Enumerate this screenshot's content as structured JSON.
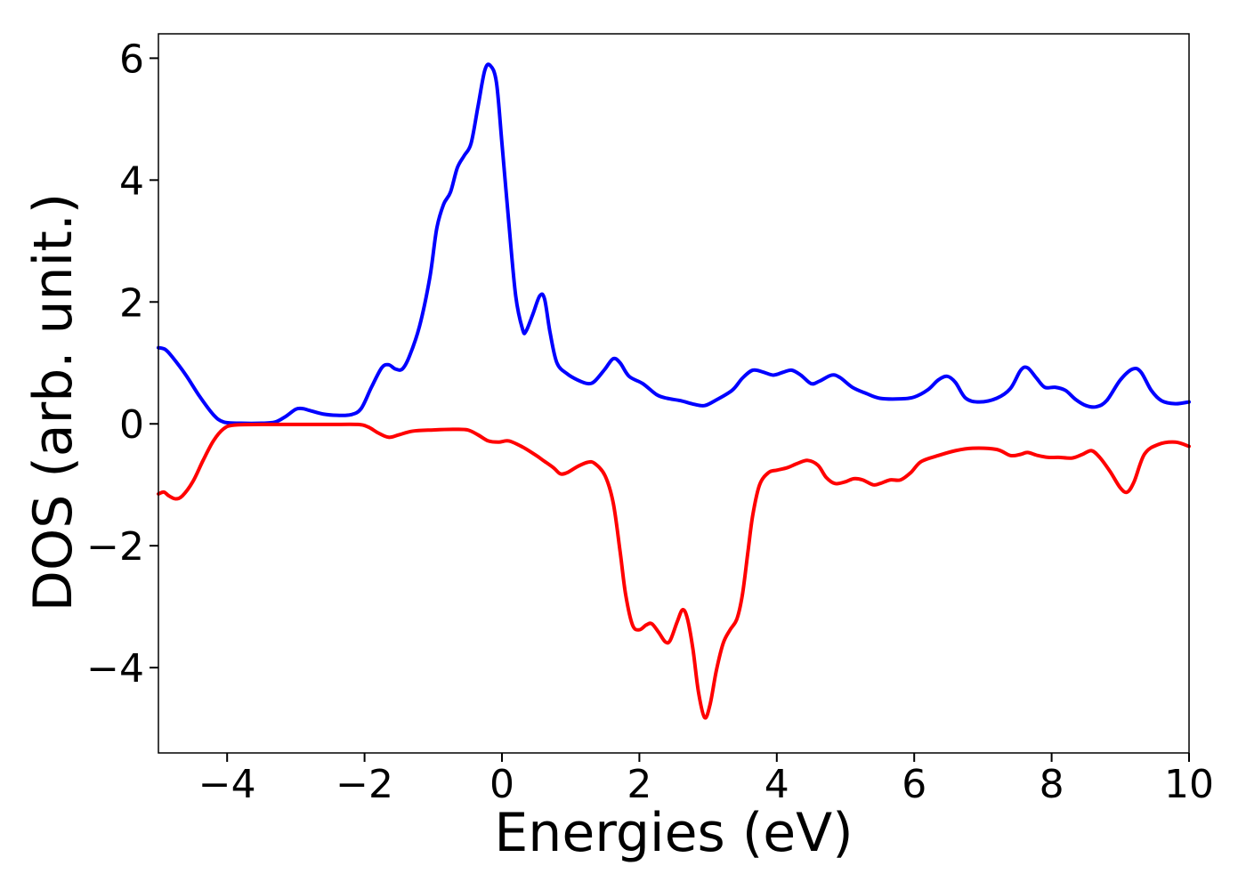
{
  "chart_data": {
    "type": "line",
    "xlabel": "Energies (eV)",
    "ylabel": "DOS (arb. unit.)",
    "xlim": [
      -5,
      10
    ],
    "ylim": [
      -5.4,
      6.4
    ],
    "xticks": [
      -4,
      -2,
      0,
      2,
      4,
      6,
      8,
      10
    ],
    "yticks": [
      -4,
      -2,
      0,
      2,
      4,
      6
    ],
    "xtick_labels": [
      "−4",
      "−2",
      "0",
      "2",
      "4",
      "6",
      "8",
      "10"
    ],
    "ytick_labels": [
      "−4",
      "−2",
      "0",
      "2",
      "4",
      "6"
    ],
    "grid": false,
    "series": [
      {
        "color": "#0000ff",
        "points": [
          [
            -5.0,
            1.25
          ],
          [
            -4.9,
            1.22
          ],
          [
            -4.8,
            1.1
          ],
          [
            -4.6,
            0.8
          ],
          [
            -4.4,
            0.45
          ],
          [
            -4.2,
            0.15
          ],
          [
            -4.05,
            0.03
          ],
          [
            -3.8,
            0.01
          ],
          [
            -3.5,
            0.01
          ],
          [
            -3.3,
            0.03
          ],
          [
            -3.15,
            0.12
          ],
          [
            -3.0,
            0.24
          ],
          [
            -2.9,
            0.25
          ],
          [
            -2.8,
            0.22
          ],
          [
            -2.6,
            0.16
          ],
          [
            -2.4,
            0.14
          ],
          [
            -2.2,
            0.15
          ],
          [
            -2.05,
            0.25
          ],
          [
            -1.9,
            0.6
          ],
          [
            -1.75,
            0.92
          ],
          [
            -1.65,
            0.97
          ],
          [
            -1.55,
            0.9
          ],
          [
            -1.45,
            0.9
          ],
          [
            -1.35,
            1.1
          ],
          [
            -1.2,
            1.6
          ],
          [
            -1.05,
            2.4
          ],
          [
            -0.95,
            3.2
          ],
          [
            -0.85,
            3.6
          ],
          [
            -0.75,
            3.8
          ],
          [
            -0.65,
            4.2
          ],
          [
            -0.55,
            4.4
          ],
          [
            -0.45,
            4.6
          ],
          [
            -0.35,
            5.2
          ],
          [
            -0.25,
            5.8
          ],
          [
            -0.17,
            5.88
          ],
          [
            -0.08,
            5.6
          ],
          [
            0.0,
            4.6
          ],
          [
            0.1,
            3.3
          ],
          [
            0.2,
            2.1
          ],
          [
            0.3,
            1.55
          ],
          [
            0.35,
            1.52
          ],
          [
            0.45,
            1.8
          ],
          [
            0.55,
            2.1
          ],
          [
            0.62,
            2.05
          ],
          [
            0.7,
            1.5
          ],
          [
            0.8,
            1.0
          ],
          [
            0.95,
            0.82
          ],
          [
            1.1,
            0.72
          ],
          [
            1.25,
            0.66
          ],
          [
            1.35,
            0.7
          ],
          [
            1.5,
            0.9
          ],
          [
            1.62,
            1.07
          ],
          [
            1.72,
            1.0
          ],
          [
            1.85,
            0.78
          ],
          [
            2.05,
            0.66
          ],
          [
            2.25,
            0.48
          ],
          [
            2.4,
            0.42
          ],
          [
            2.6,
            0.38
          ],
          [
            2.8,
            0.32
          ],
          [
            2.95,
            0.3
          ],
          [
            3.1,
            0.38
          ],
          [
            3.35,
            0.55
          ],
          [
            3.5,
            0.75
          ],
          [
            3.65,
            0.88
          ],
          [
            3.8,
            0.85
          ],
          [
            3.95,
            0.8
          ],
          [
            4.1,
            0.85
          ],
          [
            4.22,
            0.88
          ],
          [
            4.35,
            0.8
          ],
          [
            4.5,
            0.66
          ],
          [
            4.62,
            0.7
          ],
          [
            4.8,
            0.8
          ],
          [
            4.92,
            0.76
          ],
          [
            5.1,
            0.6
          ],
          [
            5.3,
            0.5
          ],
          [
            5.5,
            0.42
          ],
          [
            5.8,
            0.41
          ],
          [
            6.0,
            0.44
          ],
          [
            6.2,
            0.56
          ],
          [
            6.35,
            0.72
          ],
          [
            6.48,
            0.78
          ],
          [
            6.6,
            0.68
          ],
          [
            6.75,
            0.42
          ],
          [
            6.95,
            0.36
          ],
          [
            7.2,
            0.42
          ],
          [
            7.4,
            0.58
          ],
          [
            7.55,
            0.88
          ],
          [
            7.65,
            0.92
          ],
          [
            7.78,
            0.75
          ],
          [
            7.9,
            0.6
          ],
          [
            8.05,
            0.6
          ],
          [
            8.2,
            0.55
          ],
          [
            8.35,
            0.4
          ],
          [
            8.5,
            0.3
          ],
          [
            8.65,
            0.28
          ],
          [
            8.8,
            0.38
          ],
          [
            9.0,
            0.72
          ],
          [
            9.18,
            0.9
          ],
          [
            9.3,
            0.85
          ],
          [
            9.45,
            0.55
          ],
          [
            9.6,
            0.38
          ],
          [
            9.8,
            0.33
          ],
          [
            10.0,
            0.36
          ]
        ]
      },
      {
        "color": "#ff0000",
        "points": [
          [
            -5.0,
            -1.15
          ],
          [
            -4.92,
            -1.12
          ],
          [
            -4.85,
            -1.18
          ],
          [
            -4.75,
            -1.23
          ],
          [
            -4.65,
            -1.18
          ],
          [
            -4.5,
            -0.95
          ],
          [
            -4.35,
            -0.6
          ],
          [
            -4.2,
            -0.28
          ],
          [
            -4.05,
            -0.08
          ],
          [
            -3.9,
            -0.02
          ],
          [
            -3.5,
            -0.01
          ],
          [
            -3.0,
            -0.01
          ],
          [
            -2.5,
            -0.01
          ],
          [
            -2.1,
            -0.01
          ],
          [
            -1.95,
            -0.05
          ],
          [
            -1.8,
            -0.15
          ],
          [
            -1.65,
            -0.22
          ],
          [
            -1.5,
            -0.18
          ],
          [
            -1.3,
            -0.12
          ],
          [
            -1.0,
            -0.1
          ],
          [
            -0.7,
            -0.09
          ],
          [
            -0.5,
            -0.1
          ],
          [
            -0.35,
            -0.18
          ],
          [
            -0.2,
            -0.28
          ],
          [
            -0.05,
            -0.3
          ],
          [
            0.1,
            -0.28
          ],
          [
            0.3,
            -0.38
          ],
          [
            0.5,
            -0.52
          ],
          [
            0.6,
            -0.6
          ],
          [
            0.75,
            -0.72
          ],
          [
            0.85,
            -0.82
          ],
          [
            0.95,
            -0.8
          ],
          [
            1.1,
            -0.7
          ],
          [
            1.25,
            -0.63
          ],
          [
            1.35,
            -0.65
          ],
          [
            1.5,
            -0.85
          ],
          [
            1.62,
            -1.3
          ],
          [
            1.72,
            -2.1
          ],
          [
            1.8,
            -2.8
          ],
          [
            1.9,
            -3.3
          ],
          [
            2.0,
            -3.38
          ],
          [
            2.1,
            -3.3
          ],
          [
            2.18,
            -3.28
          ],
          [
            2.28,
            -3.42
          ],
          [
            2.38,
            -3.58
          ],
          [
            2.45,
            -3.55
          ],
          [
            2.55,
            -3.25
          ],
          [
            2.63,
            -3.05
          ],
          [
            2.7,
            -3.2
          ],
          [
            2.78,
            -3.7
          ],
          [
            2.86,
            -4.4
          ],
          [
            2.95,
            -4.82
          ],
          [
            3.03,
            -4.6
          ],
          [
            3.12,
            -4.05
          ],
          [
            3.22,
            -3.6
          ],
          [
            3.32,
            -3.38
          ],
          [
            3.42,
            -3.2
          ],
          [
            3.5,
            -2.8
          ],
          [
            3.58,
            -2.1
          ],
          [
            3.65,
            -1.5
          ],
          [
            3.75,
            -1.0
          ],
          [
            3.88,
            -0.8
          ],
          [
            4.0,
            -0.76
          ],
          [
            4.15,
            -0.72
          ],
          [
            4.3,
            -0.65
          ],
          [
            4.45,
            -0.6
          ],
          [
            4.6,
            -0.68
          ],
          [
            4.72,
            -0.88
          ],
          [
            4.85,
            -0.98
          ],
          [
            5.0,
            -0.95
          ],
          [
            5.12,
            -0.9
          ],
          [
            5.25,
            -0.92
          ],
          [
            5.4,
            -1.0
          ],
          [
            5.5,
            -0.98
          ],
          [
            5.65,
            -0.92
          ],
          [
            5.8,
            -0.92
          ],
          [
            5.95,
            -0.8
          ],
          [
            6.1,
            -0.62
          ],
          [
            6.35,
            -0.52
          ],
          [
            6.6,
            -0.44
          ],
          [
            6.85,
            -0.4
          ],
          [
            7.2,
            -0.42
          ],
          [
            7.4,
            -0.52
          ],
          [
            7.55,
            -0.5
          ],
          [
            7.65,
            -0.47
          ],
          [
            7.8,
            -0.52
          ],
          [
            7.95,
            -0.55
          ],
          [
            8.1,
            -0.55
          ],
          [
            8.3,
            -0.56
          ],
          [
            8.45,
            -0.5
          ],
          [
            8.58,
            -0.44
          ],
          [
            8.7,
            -0.55
          ],
          [
            8.85,
            -0.78
          ],
          [
            9.0,
            -1.05
          ],
          [
            9.1,
            -1.12
          ],
          [
            9.2,
            -0.95
          ],
          [
            9.35,
            -0.5
          ],
          [
            9.55,
            -0.34
          ],
          [
            9.8,
            -0.3
          ],
          [
            10.0,
            -0.37
          ]
        ]
      }
    ]
  }
}
